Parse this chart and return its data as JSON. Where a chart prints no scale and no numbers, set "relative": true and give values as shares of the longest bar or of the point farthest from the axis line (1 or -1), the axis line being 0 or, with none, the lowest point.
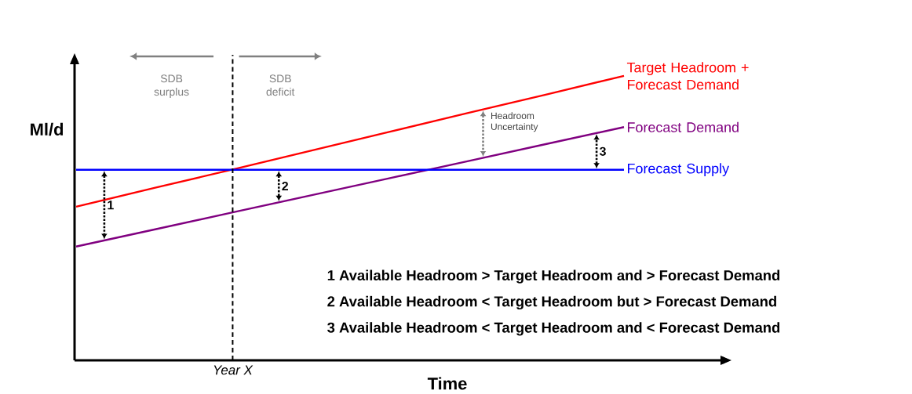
{
  "chart_data": {
    "type": "line",
    "relative": true,
    "xlabel": "Time",
    "ylabel": "Ml/d",
    "categories": [
      null,
      null,
      null,
      null,
      null,
      null,
      null,
      null
    ],
    "series": [
      {
        "name": "Target Headroom + Forecast Demand",
        "color": "#ff0000",
        "values": [
          0.54,
          0.606,
          0.671,
          0.737,
          0.803,
          0.869,
          0.934,
          1.0
        ]
      },
      {
        "name": "Forecast Demand",
        "color": "#800080",
        "values": [
          0.4,
          0.46,
          0.52,
          0.58,
          0.64,
          0.7,
          0.76,
          0.82
        ]
      },
      {
        "name": "Forecast Supply",
        "color": "#0000ff",
        "values": [
          0.67,
          0.67,
          0.67,
          0.67,
          0.67,
          0.67,
          0.67,
          0.67
        ]
      }
    ],
    "annotations": [
      "SDB surplus",
      "SDB deficit",
      "Headroom Uncertainty",
      "1",
      "2",
      "3",
      "1 Available Headroom > Target Headroom and > Forecast Demand",
      "2 Available Headroom < Target Headroom but > Forecast Demand",
      "3 Available Headroom < Target Headroom and < Forecast Demand",
      "Year X"
    ]
  }
}
